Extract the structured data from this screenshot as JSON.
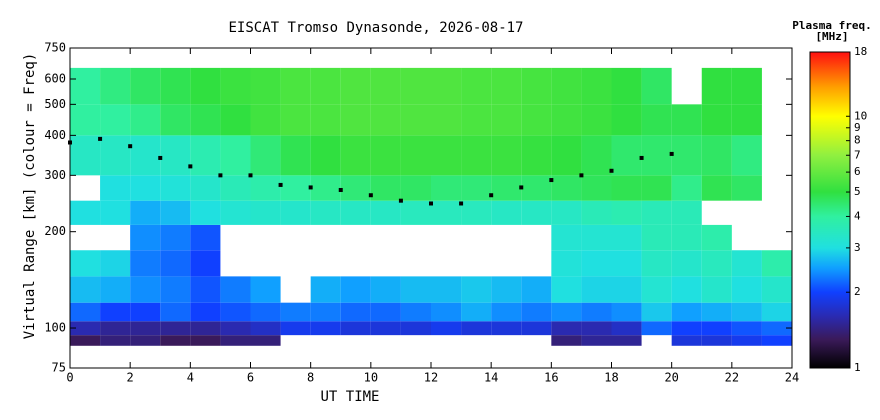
{
  "chart_data": {
    "type": "heatmap",
    "title": "EISCAT Tromso Dynasonde, 2026-08-17",
    "x_label": "UT TIME",
    "y_label": "Virtual Range [km] (colour = Freq)",
    "log_y": true,
    "xlim": [
      0,
      24
    ],
    "xticks": [
      0,
      2,
      4,
      6,
      8,
      10,
      12,
      14,
      16,
      18,
      20,
      22,
      24
    ],
    "ylim": [
      75,
      750
    ],
    "yticks": [
      75,
      100,
      200,
      300,
      400,
      500,
      600,
      750
    ],
    "xbins": [
      0,
      1,
      2,
      3,
      4,
      5,
      6,
      7,
      8,
      9,
      10,
      11,
      12,
      13,
      14,
      15,
      16,
      17,
      18,
      19,
      20,
      21,
      22,
      23,
      24
    ],
    "ybins": [
      88,
      95,
      105,
      120,
      145,
      175,
      210,
      250,
      300,
      400,
      500,
      650
    ],
    "values": [
      [
        1.3,
        1.4,
        1.4,
        1.3,
        1.3,
        1.4,
        1.4,
        null,
        null,
        null,
        null,
        null,
        null,
        null,
        null,
        null,
        1.4,
        1.5,
        1.5,
        null,
        1.8,
        1.8,
        1.9,
        2.0
      ],
      [
        1.6,
        1.5,
        1.5,
        1.5,
        1.5,
        1.6,
        1.7,
        1.9,
        1.9,
        1.8,
        1.8,
        1.8,
        1.9,
        1.8,
        1.8,
        1.8,
        1.6,
        1.6,
        1.7,
        2.2,
        2.0,
        2.0,
        2.1,
        2.2
      ],
      [
        2.2,
        2.0,
        2.0,
        2.2,
        2.0,
        2.1,
        2.2,
        2.3,
        2.3,
        2.2,
        2.2,
        2.3,
        2.4,
        2.6,
        2.4,
        2.3,
        2.4,
        2.3,
        2.4,
        2.8,
        2.5,
        2.6,
        2.7,
        2.9
      ],
      [
        2.7,
        2.6,
        2.4,
        2.3,
        2.1,
        2.3,
        2.5,
        null,
        2.6,
        2.5,
        2.6,
        2.7,
        2.7,
        2.8,
        2.7,
        2.6,
        3.0,
        2.9,
        2.9,
        3.2,
        3.0,
        3.3,
        3.0,
        3.3
      ],
      [
        3.0,
        2.9,
        2.3,
        2.2,
        2.0,
        null,
        null,
        null,
        null,
        null,
        null,
        null,
        null,
        null,
        null,
        null,
        3.1,
        3.0,
        3.0,
        3.4,
        3.3,
        3.5,
        3.2,
        3.8
      ],
      [
        null,
        null,
        2.4,
        2.3,
        2.1,
        null,
        null,
        null,
        null,
        null,
        null,
        null,
        null,
        null,
        null,
        null,
        3.2,
        3.2,
        3.2,
        3.6,
        3.6,
        3.8,
        null,
        null
      ],
      [
        3.0,
        3.0,
        2.6,
        2.7,
        3.0,
        3.2,
        3.3,
        3.3,
        3.4,
        3.4,
        3.4,
        3.5,
        3.5,
        3.5,
        3.4,
        3.4,
        3.4,
        3.6,
        3.7,
        3.6,
        3.6,
        null,
        null,
        null
      ],
      [
        null,
        3.0,
        3.0,
        3.1,
        3.3,
        3.6,
        3.8,
        4.0,
        4.2,
        4.4,
        4.6,
        4.6,
        4.4,
        4.4,
        4.5,
        4.5,
        4.6,
        4.7,
        4.8,
        4.8,
        4.2,
        4.8,
        4.6,
        null
      ],
      [
        3.4,
        3.4,
        3.3,
        3.4,
        3.7,
        4.0,
        4.4,
        4.8,
        5.0,
        5.2,
        5.2,
        5.2,
        5.2,
        5.2,
        5.2,
        5.1,
        5.0,
        4.8,
        4.5,
        4.5,
        4.5,
        4.6,
        4.3,
        null
      ],
      [
        4.0,
        4.0,
        4.2,
        4.6,
        4.8,
        5.0,
        5.3,
        5.5,
        5.5,
        5.6,
        5.6,
        5.6,
        5.6,
        5.5,
        5.5,
        5.4,
        5.3,
        5.2,
        5.0,
        4.8,
        4.8,
        5.0,
        5.0,
        null
      ],
      [
        4.0,
        4.3,
        4.6,
        4.8,
        5.0,
        5.2,
        5.3,
        5.5,
        5.5,
        5.6,
        5.6,
        5.6,
        5.6,
        5.5,
        5.5,
        5.4,
        5.3,
        5.2,
        5.0,
        4.6,
        null,
        5.0,
        5.0,
        null
      ]
    ],
    "trace": {
      "color": "#000000",
      "x": [
        0,
        1,
        2,
        3,
        4,
        5,
        6,
        7,
        8,
        9,
        10,
        11,
        12,
        13,
        14,
        15,
        16,
        17,
        18,
        19,
        20
      ],
      "values": [
        380,
        390,
        370,
        340,
        320,
        300,
        300,
        280,
        275,
        270,
        260,
        250,
        245,
        245,
        260,
        275,
        290,
        300,
        310,
        340,
        350
      ]
    },
    "colorbar": {
      "title": "Plasma freq.",
      "unit": "[MHz]",
      "lim": [
        1,
        18
      ],
      "ticks": [
        1,
        2,
        3,
        4,
        5,
        6,
        7,
        8,
        9,
        10,
        18
      ],
      "colormap": [
        [
          1,
          "#000000"
        ],
        [
          1.3,
          "#3a1a5a"
        ],
        [
          1.6,
          "#2a2ab0"
        ],
        [
          2,
          "#1040ff"
        ],
        [
          2.5,
          "#10a0ff"
        ],
        [
          3,
          "#20e0e0"
        ],
        [
          4,
          "#30f0a0"
        ],
        [
          5,
          "#30e040"
        ],
        [
          7,
          "#90f040"
        ],
        [
          10,
          "#ffff00"
        ],
        [
          13,
          "#ffa000"
        ],
        [
          18,
          "#ff1010"
        ]
      ]
    }
  }
}
